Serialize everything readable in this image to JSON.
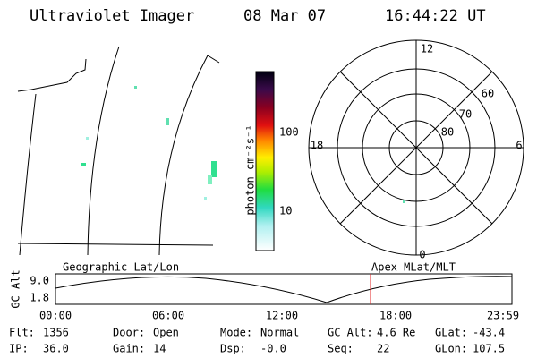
{
  "header": {
    "title": "Ultraviolet Imager",
    "date": "08 Mar 07",
    "time": "16:44:22 UT"
  },
  "colorbar": {
    "label": "photon cm⁻²s⁻¹",
    "ticks": [
      "100",
      "10"
    ]
  },
  "polar": {
    "mlt_labels": [
      "12",
      "18",
      "6",
      "0"
    ],
    "mlat_labels": [
      "60",
      "70",
      "80"
    ]
  },
  "timeline": {
    "left_label": "Geographic Lat/Lon",
    "right_label": "Apex MLat/MLT",
    "axis_label": "GC Alt",
    "yticks": [
      "9.0",
      "1.8"
    ],
    "xticks": [
      "00:00",
      "06:00",
      "12:00",
      "18:00",
      "23:59"
    ]
  },
  "footer": {
    "fields": [
      {
        "label": "Flt:",
        "value": "1356"
      },
      {
        "label": "IP:",
        "value": "36.0"
      },
      {
        "label": "Door:",
        "value": "Open"
      },
      {
        "label": "Gain:",
        "value": "14"
      },
      {
        "label": "Mode:",
        "value": "Normal"
      },
      {
        "label": "Dsp:",
        "value": "-0.0"
      },
      {
        "label": "GC Alt:",
        "value": "4.6 Re"
      },
      {
        "label": "Seq:",
        "value": "22"
      },
      {
        "label": "GLat:",
        "value": "-43.4"
      },
      {
        "label": "GLon:",
        "value": "107.5"
      }
    ]
  }
}
